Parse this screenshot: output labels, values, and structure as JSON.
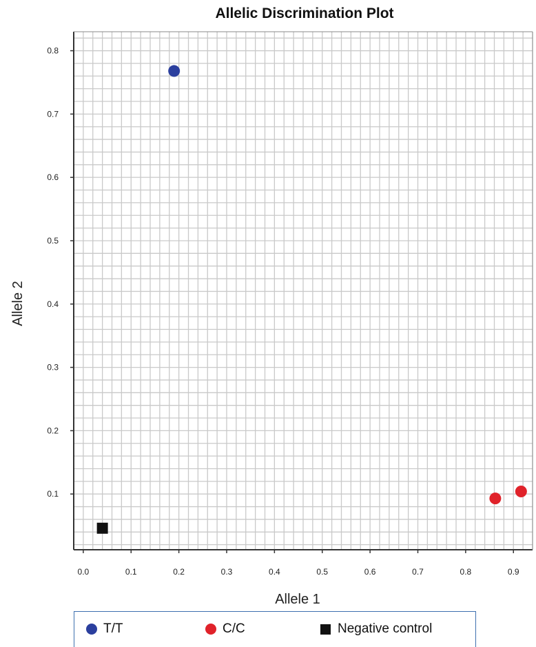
{
  "chart_data": {
    "type": "scatter",
    "title": "Allelic Discrimination Plot",
    "xlabel": "Allele 1",
    "ylabel": "Allele 2",
    "xlim": [
      -0.02,
      0.94
    ],
    "ylim": [
      0.012,
      0.83
    ],
    "x_ticks": [
      "0.0",
      "0.1",
      "0.2",
      "0.3",
      "0.4",
      "0.5",
      "0.6",
      "0.7",
      "0.8",
      "0.9"
    ],
    "y_ticks": [
      "0.1",
      "0.2",
      "0.3",
      "0.4",
      "0.5",
      "0.6",
      "0.7",
      "0.8"
    ],
    "grid": true,
    "legend_position": "bottom",
    "series": [
      {
        "name": "T/T",
        "color": "#2b3f9e",
        "marker": "circle",
        "points": [
          [
            0.19,
            0.768
          ]
        ]
      },
      {
        "name": "C/C",
        "color": "#e0222a",
        "marker": "circle",
        "points": [
          [
            0.862,
            0.093
          ],
          [
            0.916,
            0.104
          ]
        ]
      },
      {
        "name": "Negative control",
        "color": "#111111",
        "marker": "square",
        "points": [
          [
            0.04,
            0.046
          ]
        ]
      }
    ]
  }
}
